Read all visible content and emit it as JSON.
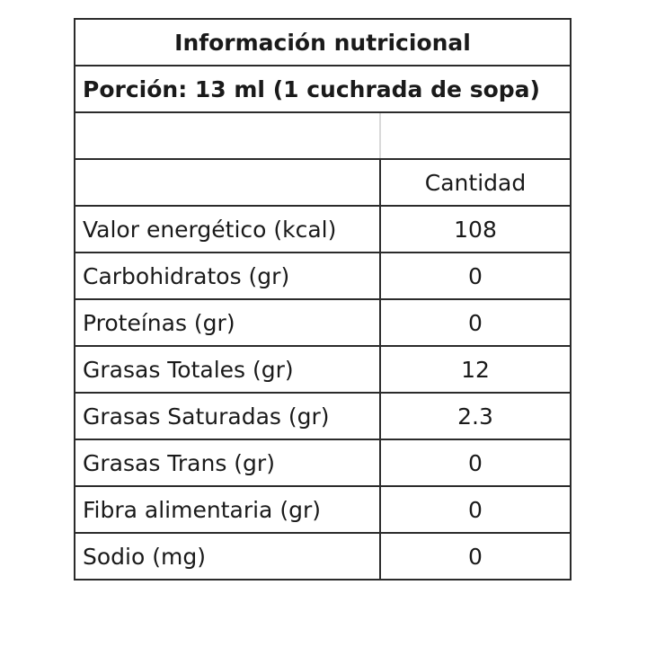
{
  "table": {
    "title": "Información nutricional",
    "portion": "Porción: 13 ml (1 cuchrada de sopa)",
    "column_header": "Cantidad",
    "rows": [
      {
        "name": "Valor energético (kcal)",
        "value": "108"
      },
      {
        "name": "Carbohidratos (gr)",
        "value": "0"
      },
      {
        "name": "Proteínas (gr)",
        "value": "0"
      },
      {
        "name": "Grasas Totales (gr)",
        "value": "12"
      },
      {
        "name": "Grasas Saturadas (gr)",
        "value": "2.3"
      },
      {
        "name": "Grasas Trans (gr)",
        "value": "0"
      },
      {
        "name": "Fibra alimentaria (gr)",
        "value": "0"
      },
      {
        "name": "Sodio (mg)",
        "value": "0"
      }
    ]
  }
}
